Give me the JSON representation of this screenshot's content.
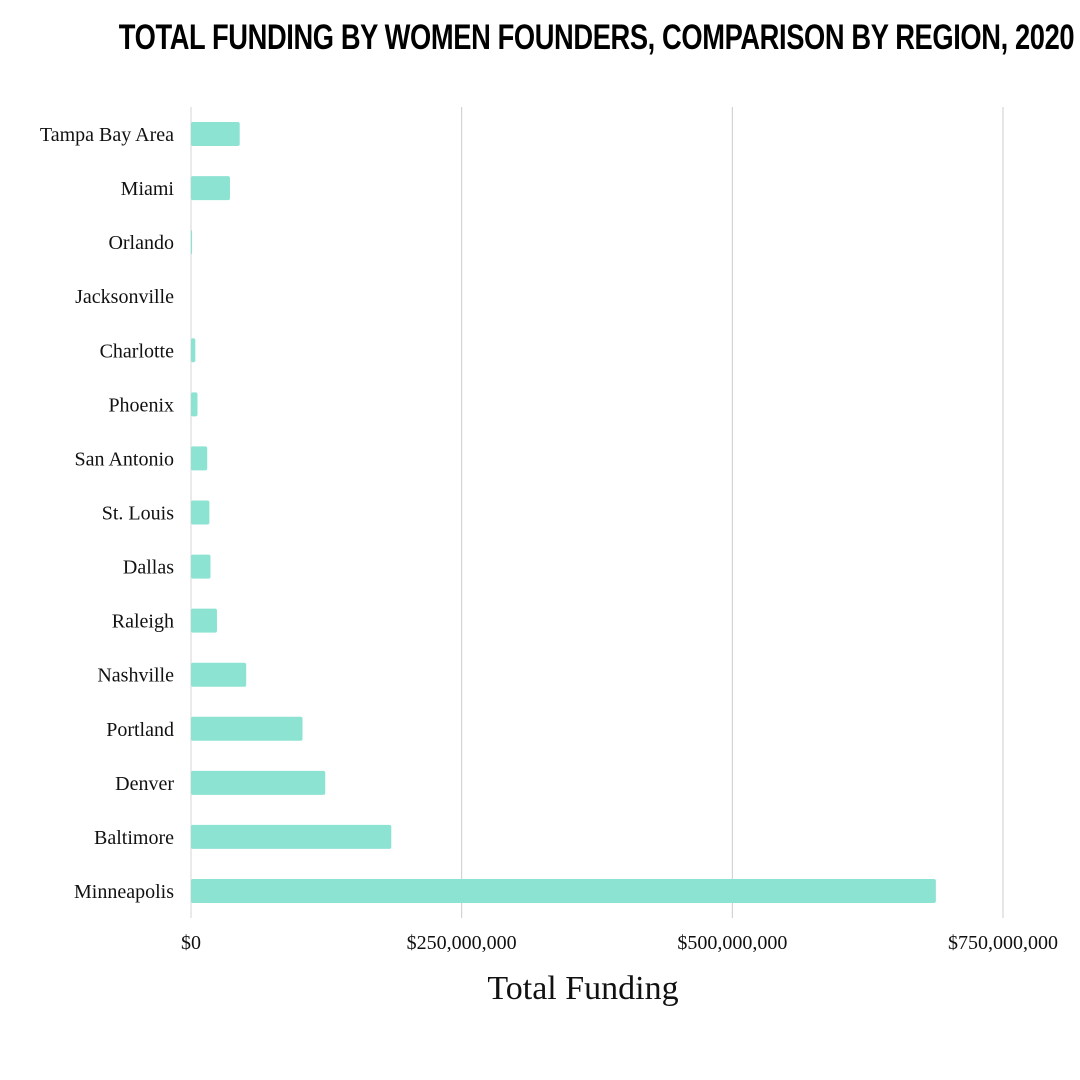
{
  "chart_data": {
    "type": "bar",
    "orientation": "horizontal",
    "title": "TOTAL FUNDING BY WOMEN FOUNDERS, COMPARISON BY REGION, 2020",
    "xlabel": "Total Funding",
    "ylabel": "",
    "categories": [
      "Tampa Bay Area",
      "Miami",
      "Orlando",
      "Jacksonville",
      "Charlotte",
      "Phoenix",
      "San Antonio",
      "St. Louis",
      "Dallas",
      "Raleigh",
      "Nashville",
      "Portland",
      "Denver",
      "Baltimore",
      "Minneapolis"
    ],
    "values": [
      45000000,
      36000000,
      1000000,
      0,
      4000000,
      6000000,
      15000000,
      17000000,
      18000000,
      24000000,
      51000000,
      103000000,
      124000000,
      185000000,
      688000000
    ],
    "xlim": [
      0,
      750000000
    ],
    "x_ticks": [
      0,
      250000000,
      500000000,
      750000000
    ],
    "x_tick_labels": [
      "$0",
      "$250,000,000",
      "$500,000,000",
      "$750,000,000"
    ],
    "grid": "vertical",
    "bar_color": "#8de3d2",
    "grid_color": "#cccccc"
  }
}
